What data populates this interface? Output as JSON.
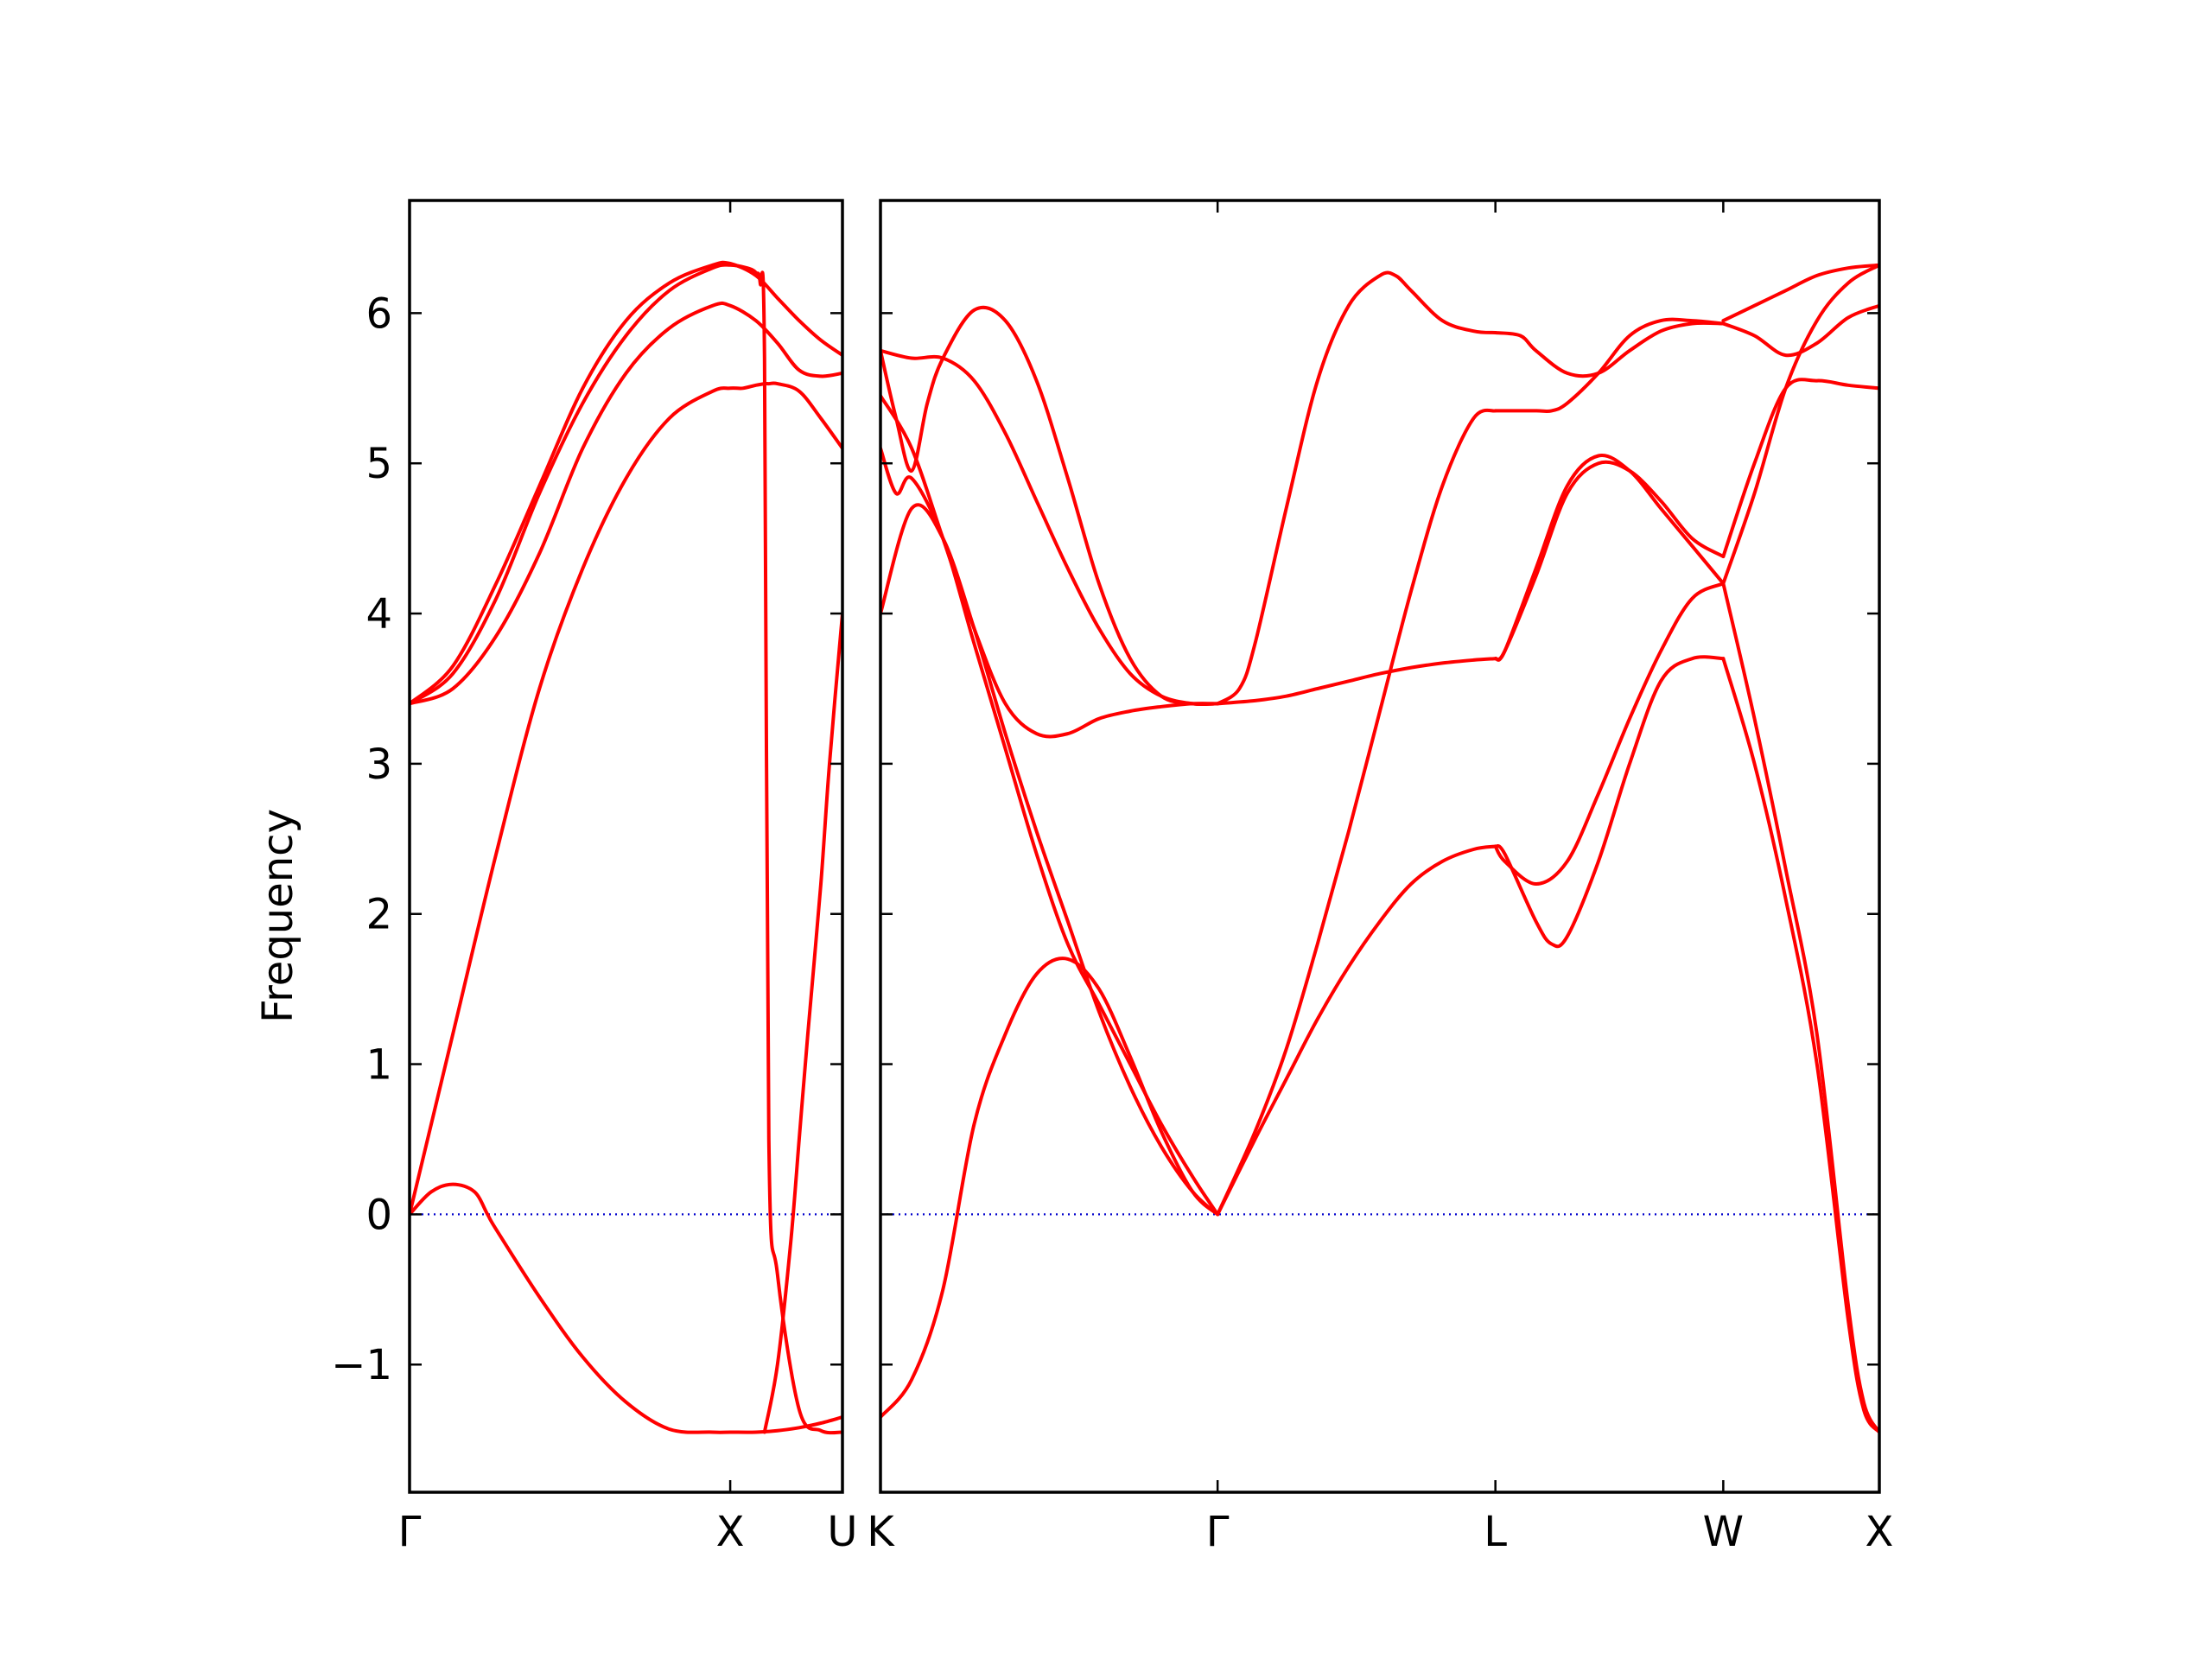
{
  "colors": {
    "band": "#ff0000",
    "zero_line": "#0000cc",
    "frame": "#000000"
  },
  "chart_data": {
    "type": "line",
    "title": "",
    "xlabel": "",
    "ylabel": "Frequency",
    "ylim": [
      -1.85,
      6.75
    ],
    "yticks": [
      -1,
      0,
      1,
      2,
      3,
      4,
      5,
      6
    ],
    "ytick_labels": [
      "−1",
      "0",
      "1",
      "2",
      "3",
      "4",
      "5",
      "6"
    ],
    "grid": false,
    "reference_line": {
      "y": 0,
      "style": "dotted"
    },
    "panels": [
      {
        "x_range": [
          0,
          1.0
        ],
        "xticks": [
          0,
          0.7407,
          1.0
        ],
        "xtick_labels": [
          "Γ",
          "X",
          "U"
        ],
        "series": [
          {
            "x": [
              0,
              0.05,
              0.1,
              0.15,
              0.18,
              0.2,
              0.3,
              0.4,
              0.5,
              0.6,
              0.7,
              0.7407,
              0.8,
              0.85,
              0.9,
              0.95,
              1.0
            ],
            "y": [
              0,
              0.15,
              0.2,
              0.15,
              0,
              -0.1,
              -0.55,
              -0.95,
              -1.25,
              -1.43,
              -1.45,
              -1.45,
              -1.45,
              -1.44,
              -1.42,
              -1.39,
              -1.35
            ]
          },
          {
            "x": [
              0,
              0.1,
              0.2,
              0.3,
              0.4,
              0.5,
              0.6,
              0.7,
              0.7407,
              0.77,
              0.8,
              0.82,
              0.83,
              0.85,
              0.9,
              0.95,
              1.0
            ],
            "y": [
              0,
              1.2,
              2.4,
              3.5,
              4.3,
              4.9,
              5.3,
              5.48,
              5.5,
              5.5,
              5.52,
              5.53,
              5.53,
              5.53,
              5.48,
              5.3,
              5.1
            ]
          },
          {
            "x": [
              0,
              0.1,
              0.2,
              0.3,
              0.4,
              0.5,
              0.6,
              0.7,
              0.7407,
              0.78,
              0.8,
              0.81,
              0.82,
              0.83,
              0.85,
              0.9,
              0.95,
              1.0
            ],
            "y": [
              3.4,
              3.6,
              4.1,
              4.8,
              5.4,
              5.85,
              6.15,
              6.3,
              6.32,
              6.3,
              6.27,
              6.2,
              5.7,
              0.5,
              -0.4,
              -1.3,
              -1.44,
              -1.45
            ]
          },
          {
            "x": [
              0,
              0.1,
              0.2,
              0.3,
              0.4,
              0.5,
              0.6,
              0.7,
              0.7407,
              0.8,
              0.85,
              0.9,
              0.95,
              1.0
            ],
            "y": [
              3.4,
              3.5,
              3.85,
              4.4,
              5.1,
              5.6,
              5.9,
              6.05,
              6.05,
              5.95,
              5.8,
              5.62,
              5.58,
              5.6
            ]
          },
          {
            "x": [
              0,
              0.1,
              0.2,
              0.3,
              0.4,
              0.5,
              0.6,
              0.7,
              0.7407,
              0.8,
              0.85,
              0.9,
              0.95,
              1.0
            ],
            "y": [
              3.4,
              3.65,
              4.2,
              4.85,
              5.5,
              5.95,
              6.2,
              6.32,
              6.33,
              6.25,
              6.1,
              5.95,
              5.82,
              5.72
            ]
          },
          {
            "x": [
              0.82,
              0.85,
              0.88,
              0.9,
              0.92,
              0.95,
              0.97,
              1.0
            ],
            "y": [
              -1.45,
              -1.0,
              -0.2,
              0.5,
              1.2,
              2.2,
              3.0,
              4.0
            ]
          }
        ]
      },
      {
        "x_range": [
          1.0,
          4.2
        ],
        "xticks": [
          1.0,
          2.08,
          2.97,
          3.7,
          4.2
        ],
        "xtick_labels": [
          "K",
          "Γ",
          "L",
          "W",
          "X"
        ],
        "series": [
          {
            "x": [
              1.0,
              1.1,
              1.2,
              1.3,
              1.4,
              1.5,
              1.6,
              1.7,
              1.8,
              1.9,
              2.0,
              2.08
            ],
            "y": [
              -1.35,
              -1.1,
              -0.5,
              0.6,
              1.2,
              1.6,
              1.7,
              1.5,
              1.05,
              0.55,
              0.15,
              0
            ]
          },
          {
            "x": [
              1.0,
              1.1,
              1.2,
              1.3,
              1.4,
              1.5,
              1.6,
              1.7,
              1.8,
              1.9,
              2.0,
              2.08
            ],
            "y": [
              4.0,
              4.7,
              4.5,
              3.9,
              3.2,
              2.55,
              1.95,
              1.35,
              0.85,
              0.45,
              0.15,
              0
            ]
          },
          {
            "x": [
              1.0,
              1.05,
              1.1,
              1.2,
              1.3,
              1.4,
              1.5,
              1.6,
              1.7,
              1.8,
              1.9,
              2.0,
              2.08
            ],
            "y": [
              5.1,
              4.8,
              4.9,
              4.5,
              3.8,
              3.1,
              2.4,
              1.8,
              1.4,
              1.0,
              0.6,
              0.25,
              0
            ]
          },
          {
            "x": [
              1.0,
              1.1,
              1.2,
              1.3,
              1.4,
              1.5,
              1.6,
              1.7,
              1.8,
              1.9,
              2.0,
              2.08
            ],
            "y": [
              5.45,
              5.1,
              4.5,
              3.9,
              3.4,
              3.2,
              3.2,
              3.3,
              3.35,
              3.38,
              3.4,
              3.4
            ]
          },
          {
            "x": [
              1.0,
              1.1,
              1.2,
              1.3,
              1.4,
              1.5,
              1.6,
              1.7,
              1.8,
              1.9,
              2.0,
              2.08
            ],
            "y": [
              5.75,
              5.7,
              5.7,
              5.55,
              5.2,
              4.75,
              4.3,
              3.9,
              3.6,
              3.45,
              3.4,
              3.4
            ]
          },
          {
            "x": [
              1.0,
              1.05,
              1.1,
              1.15,
              1.2,
              1.3,
              1.4,
              1.5,
              1.6,
              1.7,
              1.8,
              1.9,
              2.0,
              2.08
            ],
            "y": [
              5.75,
              5.3,
              4.95,
              5.4,
              5.7,
              6.02,
              5.95,
              5.55,
              4.9,
              4.2,
              3.7,
              3.45,
              3.4,
              3.4
            ]
          },
          {
            "x": [
              2.08,
              2.2,
              2.3,
              2.4,
              2.5,
              2.6,
              2.7,
              2.8,
              2.9,
              2.97
            ],
            "y": [
              0,
              0.5,
              0.9,
              1.3,
              1.65,
              1.95,
              2.2,
              2.35,
              2.43,
              2.45
            ]
          },
          {
            "x": [
              2.08,
              2.2,
              2.3,
              2.4,
              2.5,
              2.6,
              2.7,
              2.8,
              2.9,
              2.97
            ],
            "y": [
              0,
              0.55,
              1.1,
              1.8,
              2.55,
              3.35,
              4.15,
              4.85,
              5.3,
              5.35
            ]
          },
          {
            "x": [
              2.08,
              2.2,
              2.3,
              2.4,
              2.5,
              2.6,
              2.7,
              2.8,
              2.9,
              2.97
            ],
            "y": [
              3.4,
              3.42,
              3.45,
              3.5,
              3.55,
              3.6,
              3.64,
              3.67,
              3.69,
              3.7
            ]
          },
          {
            "x": [
              2.08,
              2.15,
              2.2,
              2.3,
              2.4,
              2.5,
              2.6,
              2.65,
              2.7,
              2.8,
              2.9,
              2.97
            ],
            "y": [
              3.4,
              3.5,
              3.8,
              4.7,
              5.55,
              6.05,
              6.25,
              6.25,
              6.15,
              5.95,
              5.88,
              5.87
            ]
          },
          {
            "x": [
              2.97,
              3.0,
              3.1,
              3.15,
              3.2,
              3.3,
              3.4,
              3.5,
              3.6,
              3.7
            ],
            "y": [
              2.45,
              2.4,
              1.95,
              1.8,
              1.85,
              2.35,
              3.0,
              3.55,
              3.7,
              3.7
            ]
          },
          {
            "x": [
              2.97,
              3.0,
              3.1,
              3.2,
              3.3,
              3.4,
              3.5,
              3.6,
              3.7
            ],
            "y": [
              2.45,
              2.35,
              2.2,
              2.35,
              2.8,
              3.3,
              3.75,
              4.1,
              4.2
            ]
          },
          {
            "x": [
              2.97,
              3.0,
              3.1,
              3.2,
              3.3,
              3.4,
              3.5,
              3.6,
              3.7
            ],
            "y": [
              3.7,
              3.75,
              4.3,
              4.85,
              5.05,
              4.95,
              4.7,
              4.45,
              4.2
            ]
          },
          {
            "x": [
              2.97,
              3.0,
              3.1,
              3.2,
              3.3,
              3.4,
              3.5,
              3.6,
              3.7
            ],
            "y": [
              3.7,
              3.75,
              4.25,
              4.8,
              5.0,
              4.95,
              4.75,
              4.5,
              4.38
            ]
          },
          {
            "x": [
              2.97,
              3.0,
              3.1,
              3.15,
              3.2,
              3.3,
              3.4,
              3.5,
              3.6,
              3.7
            ],
            "y": [
              5.35,
              5.35,
              5.35,
              5.35,
              5.4,
              5.6,
              5.85,
              5.95,
              5.95,
              5.93
            ]
          },
          {
            "x": [
              2.97,
              3.05,
              3.1,
              3.2,
              3.3,
              3.4,
              3.5,
              3.6,
              3.7
            ],
            "y": [
              5.87,
              5.85,
              5.75,
              5.6,
              5.6,
              5.75,
              5.88,
              5.93,
              5.93
            ]
          },
          {
            "x": [
              3.7,
              3.8,
              3.9,
              4.0,
              4.1,
              4.15,
              4.2
            ],
            "y": [
              3.7,
              3.0,
              2.1,
              1.0,
              -0.7,
              -1.3,
              -1.45
            ]
          },
          {
            "x": [
              3.7,
              3.8,
              3.9,
              4.0,
              4.1,
              4.15,
              4.2
            ],
            "y": [
              4.2,
              3.3,
              2.3,
              1.2,
              -0.6,
              -1.25,
              -1.45
            ]
          },
          {
            "x": [
              3.7,
              3.8,
              3.9,
              4.0,
              4.1,
              4.2
            ],
            "y": [
              4.2,
              4.8,
              5.5,
              5.95,
              6.2,
              6.32
            ]
          },
          {
            "x": [
              3.7,
              3.8,
              3.9,
              4.0,
              4.1,
              4.2
            ],
            "y": [
              4.38,
              5.0,
              5.5,
              5.55,
              5.52,
              5.5
            ]
          },
          {
            "x": [
              3.7,
              3.8,
              3.9,
              4.0,
              4.1,
              4.2
            ],
            "y": [
              5.93,
              5.85,
              5.72,
              5.8,
              5.97,
              6.05
            ]
          },
          {
            "x": [
              3.7,
              3.8,
              3.9,
              4.0,
              4.1,
              4.2
            ],
            "y": [
              5.95,
              6.05,
              6.15,
              6.25,
              6.3,
              6.32
            ]
          }
        ]
      }
    ]
  }
}
